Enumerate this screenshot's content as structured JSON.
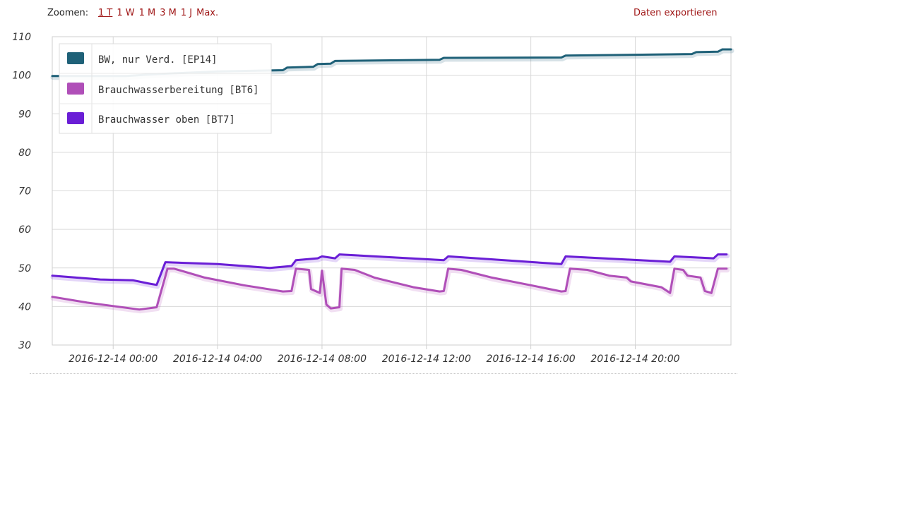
{
  "toolbar": {
    "zoom_label": "Zoomen:",
    "zoom_options": [
      "1 T",
      "1 W",
      "1 M",
      "3 M",
      "1 J",
      "Max."
    ],
    "active_zoom": "1 T",
    "export_label": "Daten exportieren"
  },
  "colors": {
    "link": "#a01818",
    "grid": "#d9d9d9",
    "series_ep14": "#1f6178",
    "series_bt6": "#b04fb8",
    "series_bt7": "#6a1ed6"
  },
  "chart_data": {
    "type": "line",
    "ylim": [
      30,
      110
    ],
    "yticks": [
      30,
      40,
      50,
      60,
      70,
      80,
      90,
      100,
      110
    ],
    "xlim": [
      "2016-12-13 21:40",
      "2016-12-14 23:40"
    ],
    "xtick_labels": [
      "2016-12-14 00:00",
      "2016-12-14 04:00",
      "2016-12-14 08:00",
      "2016-12-14 12:00",
      "2016-12-14 16:00",
      "2016-12-14 20:00"
    ],
    "grid": true,
    "legend_position": "top-left",
    "series": [
      {
        "name": "BW, nur Verd. [EP14]",
        "color": "#1f6178",
        "points": [
          [
            "2016-12-13 21:40",
            99.8
          ],
          [
            "2016-12-14 00:30",
            99.8
          ],
          [
            "2016-12-14 01:40",
            100.3
          ],
          [
            "2016-12-14 04:00",
            101.0
          ],
          [
            "2016-12-14 06:30",
            101.3
          ],
          [
            "2016-12-14 06:40",
            102.0
          ],
          [
            "2016-12-14 07:40",
            102.2
          ],
          [
            "2016-12-14 07:50",
            102.9
          ],
          [
            "2016-12-14 08:20",
            103.0
          ],
          [
            "2016-12-14 08:30",
            103.7
          ],
          [
            "2016-12-14 12:30",
            104.0
          ],
          [
            "2016-12-14 12:40",
            104.5
          ],
          [
            "2016-12-14 17:10",
            104.6
          ],
          [
            "2016-12-14 17:20",
            105.1
          ],
          [
            "2016-12-14 22:10",
            105.5
          ],
          [
            "2016-12-14 22:20",
            106.0
          ],
          [
            "2016-12-14 23:10",
            106.1
          ],
          [
            "2016-12-14 23:20",
            106.7
          ],
          [
            "2016-12-14 23:40",
            106.7
          ]
        ]
      },
      {
        "name": "Brauchwasserbereitung [BT6]",
        "color": "#b04fb8",
        "points": [
          [
            "2016-12-13 21:40",
            42.5
          ],
          [
            "2016-12-13 23:00",
            41.0
          ],
          [
            "2016-12-14 01:00",
            39.2
          ],
          [
            "2016-12-14 01:40",
            39.8
          ],
          [
            "2016-12-14 02:05",
            49.8
          ],
          [
            "2016-12-14 02:20",
            49.8
          ],
          [
            "2016-12-14 03:30",
            47.5
          ],
          [
            "2016-12-14 05:00",
            45.5
          ],
          [
            "2016-12-14 06:30",
            43.9
          ],
          [
            "2016-12-14 06:50",
            44.0
          ],
          [
            "2016-12-14 07:00",
            49.8
          ],
          [
            "2016-12-14 07:30",
            49.5
          ],
          [
            "2016-12-14 07:35",
            44.5
          ],
          [
            "2016-12-14 07:55",
            43.5
          ],
          [
            "2016-12-14 08:00",
            49.3
          ],
          [
            "2016-12-14 08:10",
            40.5
          ],
          [
            "2016-12-14 08:20",
            39.5
          ],
          [
            "2016-12-14 08:40",
            39.8
          ],
          [
            "2016-12-14 08:45",
            49.8
          ],
          [
            "2016-12-14 09:15",
            49.5
          ],
          [
            "2016-12-14 10:00",
            47.5
          ],
          [
            "2016-12-14 11:30",
            45.0
          ],
          [
            "2016-12-14 12:30",
            43.9
          ],
          [
            "2016-12-14 12:40",
            44.0
          ],
          [
            "2016-12-14 12:50",
            49.8
          ],
          [
            "2016-12-14 13:20",
            49.5
          ],
          [
            "2016-12-14 14:30",
            47.5
          ],
          [
            "2016-12-14 16:00",
            45.5
          ],
          [
            "2016-12-14 17:10",
            43.9
          ],
          [
            "2016-12-14 17:20",
            44.0
          ],
          [
            "2016-12-14 17:30",
            49.8
          ],
          [
            "2016-12-14 18:10",
            49.5
          ],
          [
            "2016-12-14 19:00",
            48.0
          ],
          [
            "2016-12-14 19:40",
            47.5
          ],
          [
            "2016-12-14 19:50",
            46.5
          ],
          [
            "2016-12-14 21:00",
            45.0
          ],
          [
            "2016-12-14 21:20",
            43.5
          ],
          [
            "2016-12-14 21:30",
            49.8
          ],
          [
            "2016-12-14 21:50",
            49.5
          ],
          [
            "2016-12-14 22:00",
            48.0
          ],
          [
            "2016-12-14 22:30",
            47.5
          ],
          [
            "2016-12-14 22:40",
            44.0
          ],
          [
            "2016-12-14 22:55",
            43.5
          ],
          [
            "2016-12-14 23:10",
            49.8
          ],
          [
            "2016-12-14 23:30",
            49.8
          ]
        ]
      },
      {
        "name": "Brauchwasser oben [BT7]",
        "color": "#6a1ed6",
        "points": [
          [
            "2016-12-13 21:40",
            48.0
          ],
          [
            "2016-12-13 23:30",
            47.0
          ],
          [
            "2016-12-14 00:45",
            46.8
          ],
          [
            "2016-12-14 01:20",
            46.0
          ],
          [
            "2016-12-14 01:40",
            45.6
          ],
          [
            "2016-12-14 02:00",
            51.5
          ],
          [
            "2016-12-14 04:00",
            51.0
          ],
          [
            "2016-12-14 06:00",
            50.0
          ],
          [
            "2016-12-14 06:50",
            50.5
          ],
          [
            "2016-12-14 07:00",
            52.0
          ],
          [
            "2016-12-14 07:50",
            52.5
          ],
          [
            "2016-12-14 08:00",
            53.0
          ],
          [
            "2016-12-14 08:30",
            52.5
          ],
          [
            "2016-12-14 08:40",
            53.5
          ],
          [
            "2016-12-14 12:40",
            52.0
          ],
          [
            "2016-12-14 12:50",
            53.0
          ],
          [
            "2016-12-14 17:10",
            51.0
          ],
          [
            "2016-12-14 17:20",
            53.0
          ],
          [
            "2016-12-14 21:20",
            51.6
          ],
          [
            "2016-12-14 21:30",
            53.0
          ],
          [
            "2016-12-14 23:00",
            52.5
          ],
          [
            "2016-12-14 23:10",
            53.5
          ],
          [
            "2016-12-14 23:30",
            53.5
          ]
        ]
      }
    ]
  }
}
